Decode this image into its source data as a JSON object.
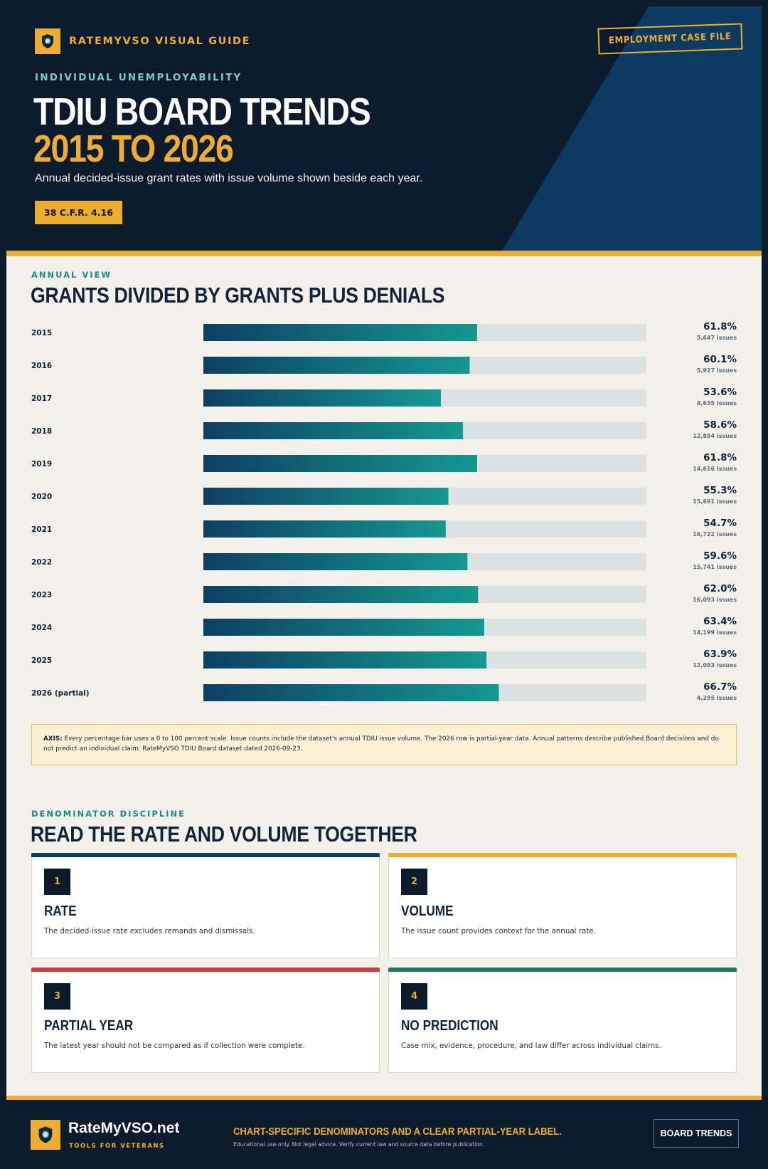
{
  "header": {
    "brand": "RATEMYVSO VISUAL GUIDE",
    "case_file": "EMPLOYMENT CASE FILE",
    "kicker": "INDIVIDUAL UNEMPLOYABILITY",
    "title_line1": "TDIU BOARD TRENDS",
    "title_line2": "2015 TO 2026",
    "subtitle": "Annual decided-issue grant rates with issue volume shown beside each year.",
    "cfr_badge": "38 C.F.R. 4.16"
  },
  "annual": {
    "kicker": "ANNUAL VIEW",
    "title": "GRANTS DIVIDED BY GRANTS PLUS DENIALS"
  },
  "chart_data": {
    "type": "bar",
    "orientation": "horizontal",
    "categories": [
      "2015",
      "2016",
      "2017",
      "2018",
      "2019",
      "2020",
      "2021",
      "2022",
      "2023",
      "2024",
      "2025",
      "2026 (partial)"
    ],
    "series": [
      {
        "values": [
          61.8,
          60.1,
          53.6,
          58.6,
          61.8,
          55.3,
          54.7,
          59.6,
          62.0,
          63.4,
          63.9,
          66.7
        ]
      }
    ],
    "value_labels": [
      "61.8%",
      "60.1%",
      "53.6%",
      "58.6%",
      "61.8%",
      "55.3%",
      "54.7%",
      "59.6%",
      "62.0%",
      "63.4%",
      "63.9%",
      "66.7%"
    ],
    "issue_labels": [
      "5,647 issues",
      "5,927 issues",
      "8,635 issues",
      "12,894 issues",
      "14,616 issues",
      "15,691 issues",
      "16,722 issues",
      "15,741 issues",
      "16,093 issues",
      "14,199 issues",
      "12,093 issues",
      "4,295 issues"
    ],
    "issue_counts": [
      5647,
      5927,
      8635,
      12894,
      14616,
      15691,
      16722,
      15741,
      16093,
      14199,
      12093,
      4295
    ],
    "xlim": [
      0,
      100
    ],
    "grid": false,
    "colors": {
      "bar_start": "#0d3f63",
      "bar_end": "#159890",
      "track": "#dce1e2"
    }
  },
  "note": {
    "label": "AXIS:",
    "text": "Every percentage bar uses a 0 to 100 percent scale. Issue counts include the dataset's annual TDIU issue volume. The 2026 row is partial-year data. Annual patterns describe published Board decisions and do not predict an individual claim. RateMyVSO TDIU Board dataset dated 2026-09-23."
  },
  "discipline": {
    "kicker": "DENOMINATOR DISCIPLINE",
    "title": "READ THE RATE AND VOLUME TOGETHER",
    "cards": [
      {
        "number": "1",
        "title": "RATE",
        "body": "The decided-issue rate excludes remands and dismissals.",
        "accent": "#0d3f63"
      },
      {
        "number": "2",
        "title": "VOLUME",
        "body": "The issue count provides context for the annual rate.",
        "accent": "#efad2f"
      },
      {
        "number": "3",
        "title": "PARTIAL YEAR",
        "body": "The latest year should not be compared as if collection were complete.",
        "accent": "#d13a3f"
      },
      {
        "number": "4",
        "title": "NO PREDICTION",
        "body": "Case mix, evidence, procedure, and law differ across individual claims.",
        "accent": "#1f7a55"
      }
    ]
  },
  "footer": {
    "site": "RateMyVSO.net",
    "tagline": "TOOLS FOR VETERANS",
    "headline": "CHART-SPECIFIC DENOMINATORS AND A CLEAR PARTIAL-YEAR LABEL.",
    "disclaimer": "Educational use only. Not legal advice. Verify current law and source data before publication.",
    "button": "BOARD TRENDS"
  },
  "colors": {
    "navy": "#0b1a2c",
    "gold": "#efad2f",
    "teal": "#1b8d86",
    "cream": "#f4f1ea"
  }
}
